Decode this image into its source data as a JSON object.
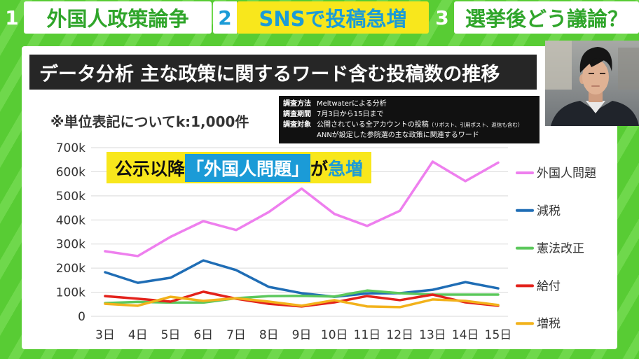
{
  "tabs": [
    {
      "number": "1",
      "label": "外国人政策論争",
      "active": false
    },
    {
      "number": "2",
      "label": "SNSで投稿急増",
      "active": true
    },
    {
      "number": "3",
      "label": "選挙後どう議論？",
      "active": false
    }
  ],
  "unit_note": "※単位表記についてk:1,000件",
  "survey": [
    {
      "label": "調査方法",
      "value": "Meltwaterによる分析"
    },
    {
      "label": "調査期間",
      "value": "7月3日から15日まで"
    },
    {
      "label": "調査対象",
      "value": "公開されている全アカウントの投稿",
      "note": "（リポスト、引用ポスト、返信も含む）"
    },
    {
      "value": "ANNが設定した参院選の主な政策に関連するワード"
    }
  ],
  "annotation": {
    "lead": "公示以降",
    "highlight": "「外国人問題」",
    "particle": "が",
    "emphasis": "急増"
  },
  "colors": {
    "background_green": "#58cc34",
    "background_stripe": "#6fd84c",
    "tab_text": "#2fa52a",
    "active_tab_bg": "#f8e71c",
    "accent_blue": "#1b9bd7",
    "banner_bg": "#262626"
  },
  "chart_data": {
    "type": "line",
    "title": "データ分析 主な政策に関するワード含む投稿数の推移",
    "categories": [
      "3日",
      "4日",
      "5日",
      "6日",
      "7日",
      "8日",
      "9日",
      "10日",
      "11日",
      "12日",
      "13日",
      "14日",
      "15日"
    ],
    "series": [
      {
        "name": "外国人問題",
        "color": "#ee7fee",
        "values": [
          270,
          250,
          330,
          395,
          358,
          433,
          530,
          425,
          375,
          438,
          642,
          561,
          638
        ]
      },
      {
        "name": "減税",
        "color": "#1f6db5",
        "values": [
          183,
          139,
          160,
          232,
          192,
          122,
          96,
          81,
          95,
          96,
          110,
          142,
          116
        ]
      },
      {
        "name": "憲法改正",
        "color": "#5cc85c",
        "values": [
          55,
          60,
          57,
          57,
          75,
          84,
          85,
          82,
          107,
          96,
          90,
          90,
          90
        ]
      },
      {
        "name": "給付",
        "color": "#e3221b",
        "values": [
          84,
          73,
          61,
          102,
          73,
          52,
          41,
          58,
          84,
          67,
          90,
          58,
          44
        ]
      },
      {
        "name": "増税",
        "color": "#f2b21b",
        "values": [
          52,
          44,
          81,
          64,
          75,
          61,
          44,
          67,
          41,
          38,
          70,
          64,
          47
        ]
      }
    ],
    "ylim": [
      0,
      700
    ],
    "yticks": [
      0,
      100,
      200,
      300,
      400,
      500,
      600,
      700
    ],
    "ytick_labels": [
      "0",
      "100k",
      "200k",
      "300k",
      "400k",
      "500k",
      "600k",
      "700k"
    ],
    "grid": true,
    "legend": "right"
  }
}
